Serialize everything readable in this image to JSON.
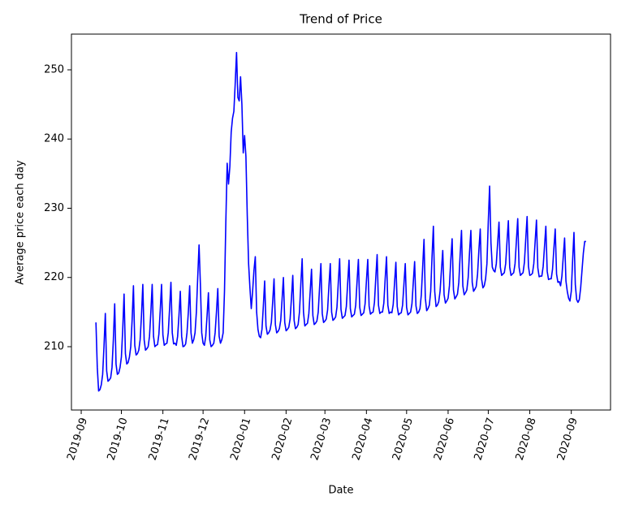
{
  "chart_data": {
    "type": "line",
    "title": "Trend of Price",
    "x_label": "Date",
    "y_label": "Average price each day",
    "color": "#0000ff",
    "ylim": [
      200.85,
      255.16
    ],
    "yticks": [
      210,
      220,
      230,
      240,
      250
    ],
    "xlim": [
      -18.3,
      384.3
    ],
    "xticks": [
      {
        "value": -11,
        "label": "2019-09"
      },
      {
        "value": 19,
        "label": "2019-10"
      },
      {
        "value": 50,
        "label": "2019-11"
      },
      {
        "value": 80,
        "label": "2019-12"
      },
      {
        "value": 111,
        "label": "2020-01"
      },
      {
        "value": 142,
        "label": "2020-02"
      },
      {
        "value": 171,
        "label": "2020-03"
      },
      {
        "value": 202,
        "label": "2020-04"
      },
      {
        "value": 232,
        "label": "2020-05"
      },
      {
        "value": 263,
        "label": "2020-06"
      },
      {
        "value": 293,
        "label": "2020-07"
      },
      {
        "value": 324,
        "label": "2020-08"
      },
      {
        "value": 355,
        "label": "2020-09"
      }
    ],
    "values": [
      213.5,
      207,
      203.6,
      203.8,
      204.5,
      206,
      210,
      214.8,
      206.5,
      205,
      205.2,
      205.5,
      207,
      211,
      216.2,
      207.5,
      206,
      206.2,
      207,
      208.5,
      212.5,
      217.6,
      209,
      207.5,
      207.7,
      208.5,
      210,
      213.8,
      218.8,
      210.2,
      208.8,
      209,
      209.5,
      211,
      214.5,
      219,
      211,
      209.5,
      209.7,
      210,
      211.5,
      215,
      219,
      211.5,
      210,
      210.2,
      210.3,
      211.8,
      215.2,
      219,
      211.7,
      210.2,
      210.4,
      210.5,
      212,
      215.5,
      219.3,
      212,
      210.4,
      210.5,
      210.2,
      211.5,
      214.5,
      218,
      211.5,
      210,
      210.1,
      210.4,
      212,
      215,
      218.8,
      212,
      210.5,
      211,
      212,
      215,
      220,
      224.7,
      219,
      212,
      210.5,
      210.2,
      211.5,
      214.5,
      217.8,
      211,
      210,
      210.2,
      210.5,
      212,
      215,
      218.4,
      211.5,
      210.5,
      211,
      212,
      218,
      228,
      236.5,
      233.5,
      236,
      241,
      243,
      244,
      248,
      252.5,
      246,
      245.5,
      249,
      245,
      238,
      240.5,
      237.5,
      229,
      222,
      218.5,
      215.5,
      218,
      221,
      223,
      215,
      212.5,
      211.5,
      211.3,
      212.5,
      215.8,
      219.5,
      213,
      211.8,
      212,
      212.4,
      213.5,
      216.5,
      219.8,
      213.2,
      212,
      212.2,
      212.6,
      213.8,
      216.8,
      220,
      213.5,
      212.3,
      212.5,
      212.8,
      214,
      217,
      220.3,
      213.8,
      212.6,
      212.8,
      213.2,
      215,
      219,
      222.7,
      215,
      213,
      213.2,
      213.4,
      214.8,
      218,
      221.2,
      214.5,
      213.2,
      213.4,
      213.7,
      215,
      218.5,
      222,
      214.8,
      213.5,
      213.7,
      214,
      215.3,
      218.8,
      222,
      215,
      213.8,
      214,
      214.3,
      215.7,
      219.3,
      222.7,
      215.4,
      214.1,
      214.3,
      214.5,
      215.8,
      219.2,
      222.5,
      215.5,
      214.3,
      214.5,
      214.7,
      216,
      219.4,
      222.6,
      215.7,
      214.5,
      214.7,
      214.9,
      216.2,
      219.5,
      222.6,
      215.9,
      214.7,
      214.9,
      215,
      216.4,
      220,
      223.3,
      216,
      214.8,
      215,
      215,
      216.3,
      219.8,
      223,
      216,
      214.8,
      215,
      214.9,
      216.1,
      219.2,
      222.2,
      215.8,
      214.6,
      214.8,
      214.9,
      216,
      219,
      222,
      215.7,
      214.6,
      214.8,
      215,
      216.2,
      219.3,
      222.3,
      215.9,
      214.8,
      215,
      215.5,
      217.5,
      221.5,
      225.5,
      217,
      215.2,
      215.5,
      216,
      218,
      223,
      227.4,
      218,
      215.8,
      216,
      216.5,
      218,
      221,
      223.9,
      217.5,
      216.3,
      216.6,
      217,
      218.8,
      222.5,
      225.6,
      218.2,
      216.9,
      217.2,
      217.6,
      219.3,
      223.3,
      226.8,
      218.8,
      217.5,
      217.8,
      218.2,
      220,
      223.6,
      226.8,
      219.3,
      218,
      218.3,
      218.7,
      220.5,
      224,
      227,
      219.8,
      218.5,
      218.8,
      219.8,
      222,
      228,
      233.2,
      225,
      221.5,
      221,
      220.8,
      222,
      225,
      228,
      221.5,
      220.3,
      220.5,
      220.7,
      222,
      225.2,
      228.2,
      221.5,
      220.3,
      220.5,
      220.7,
      222,
      225.3,
      228.5,
      221.5,
      220.3,
      220.5,
      220.7,
      222.2,
      225.6,
      228.8,
      221.6,
      220.3,
      220.4,
      220.6,
      222,
      225.2,
      228.3,
      221.4,
      220.1,
      220.2,
      220.2,
      221.6,
      224.5,
      227.4,
      220.9,
      219.7,
      219.8,
      219.8,
      221.2,
      224.2,
      227,
      220.5,
      219.3,
      219.4,
      218.8,
      220.2,
      223,
      225.7,
      219.5,
      218,
      217,
      216.6,
      218,
      222.5,
      226.5,
      219,
      216.8,
      216.4,
      216.8,
      218.5,
      221,
      223.5,
      225.2,
      225.2
    ]
  }
}
